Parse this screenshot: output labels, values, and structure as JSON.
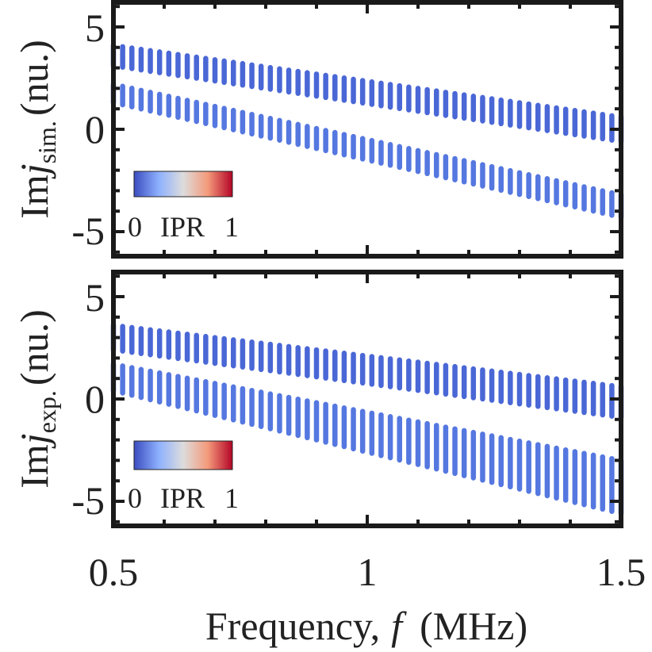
{
  "chart_data": [
    {
      "type": "scatter",
      "panel": "top",
      "ylabel": {
        "prefix": "Im",
        "var": "j",
        "sub": "sim.",
        "suffix": "(nu.)"
      },
      "xlim": [
        0.5,
        1.5
      ],
      "ylim": [
        -6.2,
        6.2
      ],
      "yticks": [
        -5,
        0,
        5
      ],
      "ytick_labels": [
        "-5",
        "0",
        "5"
      ],
      "colorbar": {
        "min_label": "0",
        "title": "IPR",
        "max_label": "1",
        "colors": [
          "#3b4cc0",
          "#8db0fe",
          "#dddcdc",
          "#f49a7b",
          "#b40426"
        ]
      },
      "series": [
        {
          "x_start": 0.5,
          "x_end": 1.5,
          "y_top_start": 4.1,
          "y_top_end": 0.6,
          "y_bot_start": 3.1,
          "y_bot_end": -0.6,
          "color": "#4a67d6"
        },
        {
          "x_start": 0.5,
          "x_end": 1.5,
          "y_top_start": 2.2,
          "y_top_end": -3.2,
          "y_bot_start": 1.3,
          "y_bot_end": -4.3,
          "color": "#5577e0"
        }
      ]
    },
    {
      "type": "scatter",
      "panel": "bottom",
      "ylabel": {
        "prefix": "Im",
        "var": "j",
        "sub": "exp.",
        "suffix": "(nu.)"
      },
      "xlim": [
        0.5,
        1.5
      ],
      "ylim": [
        -6.2,
        6.2
      ],
      "yticks": [
        -5,
        0,
        5
      ],
      "ytick_labels": [
        "-5",
        "0",
        "5"
      ],
      "xticks": [
        0.5,
        1,
        1.5
      ],
      "xtick_labels": [
        "0.5",
        "1",
        "1.5"
      ],
      "xlabel": {
        "text": "Frequency,",
        "var": "f",
        "unit": "(MHz)"
      },
      "colorbar": {
        "min_label": "0",
        "title": "IPR",
        "max_label": "1",
        "colors": [
          "#3b4cc0",
          "#8db0fe",
          "#dddcdc",
          "#f49a7b",
          "#b40426"
        ]
      },
      "series": [
        {
          "x_start": 0.5,
          "x_end": 1.5,
          "y_top_start": 3.6,
          "y_top_end": 0.6,
          "y_bot_start": 2.4,
          "y_bot_end": -0.9,
          "color": "#4a67d6"
        },
        {
          "x_start": 0.5,
          "x_end": 1.5,
          "y_top_start": 1.7,
          "y_top_end": -3.0,
          "y_bot_start": 0.4,
          "y_bot_end": -5.6,
          "color": "#5577e0"
        }
      ]
    }
  ]
}
